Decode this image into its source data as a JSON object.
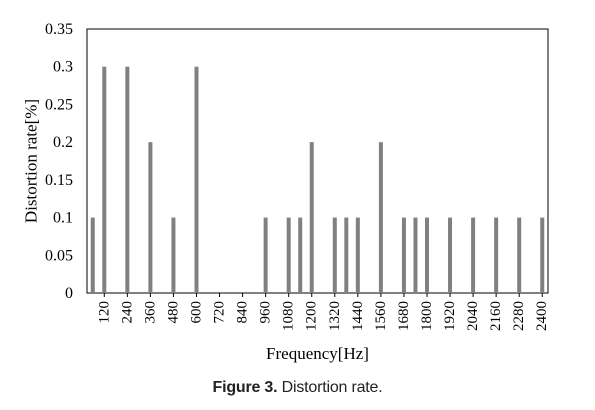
{
  "chart_data": {
    "type": "bar",
    "xlabel": "Frequency[Hz]",
    "ylabel": "Distortion rate[%]",
    "ylim": [
      0,
      0.35
    ],
    "yticks": [
      "0",
      "0.05",
      "0.1",
      "0.15",
      "0.2",
      "0.25",
      "0.3",
      "0.35"
    ],
    "xticks": [
      "120",
      "240",
      "360",
      "480",
      "600",
      "720",
      "840",
      "960",
      "1080",
      "1200",
      "1320",
      "1440",
      "1560",
      "1680",
      "1800",
      "1920",
      "2040",
      "2160",
      "2280",
      "2400"
    ],
    "x_step": 60,
    "x": [
      60,
      120,
      180,
      240,
      300,
      360,
      420,
      480,
      540,
      600,
      660,
      720,
      780,
      840,
      900,
      960,
      1020,
      1080,
      1140,
      1200,
      1260,
      1320,
      1380,
      1440,
      1500,
      1560,
      1620,
      1680,
      1740,
      1800,
      1860,
      1920,
      1980,
      2040,
      2100,
      2160,
      2220,
      2280,
      2340,
      2400
    ],
    "values": [
      0.1,
      0.3,
      0,
      0.3,
      0,
      0.2,
      0,
      0.1,
      0,
      0.3,
      0,
      0,
      0,
      0,
      0,
      0.1,
      0,
      0.1,
      0.1,
      0.2,
      0,
      0.1,
      0.1,
      0.1,
      0,
      0.2,
      0,
      0.1,
      0.1,
      0.1,
      0,
      0.1,
      0,
      0.1,
      0,
      0.1,
      0,
      0.1,
      0,
      0.1
    ],
    "bar_color": "#808080",
    "grid": false
  },
  "caption": {
    "label": "Figure 3.",
    "text": "Distortion rate."
  }
}
